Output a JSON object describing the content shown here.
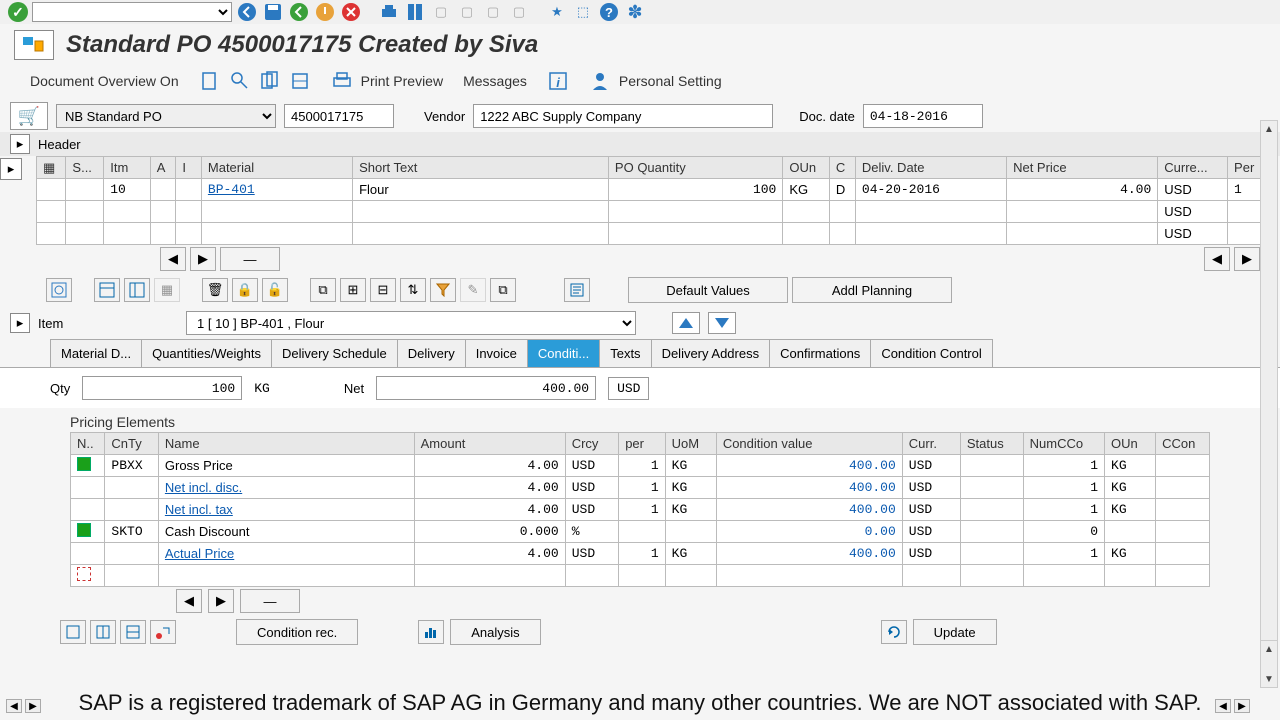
{
  "title": "Standard PO 4500017175 Created by Siva",
  "actions": {
    "doc_overview": "Document Overview On",
    "print_preview": "Print Preview",
    "messages": "Messages",
    "personal_setting": "Personal Setting"
  },
  "header": {
    "doc_type": "NB Standard PO",
    "po_number": "4500017175",
    "vendor_label": "Vendor",
    "vendor_value": "1222 ABC Supply Company",
    "doc_date_label": "Doc. date",
    "doc_date": "04-18-2016",
    "section_label": "Header"
  },
  "items_table": {
    "columns": [
      "S...",
      "Itm",
      "A",
      "I",
      "Material",
      "Short Text",
      "PO Quantity",
      "OUn",
      "C",
      "Deliv. Date",
      "Net Price",
      "Curre...",
      "Per"
    ],
    "rows": [
      {
        "s": "",
        "itm": "10",
        "a": "",
        "i": "",
        "material": "BP-401",
        "short_text": "Flour",
        "qty": "100",
        "oun": "KG",
        "c": "D",
        "deliv": "04-20-2016",
        "net": "4.00",
        "curr": "USD",
        "per": "1"
      },
      {
        "s": "",
        "itm": "",
        "a": "",
        "i": "",
        "material": "",
        "short_text": "",
        "qty": "",
        "oun": "",
        "c": "",
        "deliv": "",
        "net": "",
        "curr": "USD",
        "per": ""
      },
      {
        "s": "",
        "itm": "",
        "a": "",
        "i": "",
        "material": "",
        "short_text": "",
        "qty": "",
        "oun": "",
        "c": "",
        "deliv": "",
        "net": "",
        "curr": "USD",
        "per": ""
      }
    ]
  },
  "icon_bar": {
    "default_values": "Default Values",
    "addl_planning": "Addl Planning"
  },
  "item_section": {
    "label": "Item",
    "selected": "1 [ 10 ] BP-401 , Flour"
  },
  "tabs": [
    "Material D...",
    "Quantities/Weights",
    "Delivery Schedule",
    "Delivery",
    "Invoice",
    "Conditi...",
    "Texts",
    "Delivery Address",
    "Confirmations",
    "Condition Control"
  ],
  "active_tab_index": 5,
  "qty_line": {
    "qty_label": "Qty",
    "qty_value": "100",
    "qty_uom": "KG",
    "net_label": "Net",
    "net_value": "400.00",
    "net_curr": "USD"
  },
  "pricing": {
    "title": "Pricing Elements",
    "columns": [
      "N..",
      "CnTy",
      "Name",
      "Amount",
      "Crcy",
      "per",
      "UoM",
      "Condition value",
      "Curr.",
      "Status",
      "NumCCo",
      "OUn",
      "CCon"
    ],
    "rows": [
      {
        "mark": "g",
        "cnty": "PBXX",
        "name": "Gross Price",
        "amount": "4.00",
        "crcy": "USD",
        "per": "1",
        "uom": "KG",
        "cond_val": "400.00",
        "curr": "USD",
        "status": "",
        "numcco": "1",
        "oun": "KG"
      },
      {
        "mark": "",
        "cnty": "",
        "name": "Net incl. disc.",
        "amount": "4.00",
        "crcy": "USD",
        "per": "1",
        "uom": "KG",
        "cond_val": "400.00",
        "curr": "USD",
        "status": "",
        "numcco": "1",
        "oun": "KG"
      },
      {
        "mark": "",
        "cnty": "",
        "name": "Net incl. tax",
        "amount": "4.00",
        "crcy": "USD",
        "per": "1",
        "uom": "KG",
        "cond_val": "400.00",
        "curr": "USD",
        "status": "",
        "numcco": "1",
        "oun": "KG"
      },
      {
        "mark": "g",
        "cnty": "SKTO",
        "name": "Cash Discount",
        "amount": "0.000",
        "crcy": "%",
        "per": "",
        "uom": "",
        "cond_val": "0.00",
        "curr": "USD",
        "status": "",
        "numcco": "0",
        "oun": ""
      },
      {
        "mark": "",
        "cnty": "",
        "name": "Actual Price",
        "amount": "4.00",
        "crcy": "USD",
        "per": "1",
        "uom": "KG",
        "cond_val": "400.00",
        "curr": "USD",
        "status": "",
        "numcco": "1",
        "oun": "KG"
      },
      {
        "mark": "e",
        "cnty": "",
        "name": "",
        "amount": "",
        "crcy": "",
        "per": "",
        "uom": "",
        "cond_val": "",
        "curr": "",
        "status": "",
        "numcco": "",
        "oun": ""
      }
    ]
  },
  "bottom_actions": {
    "condition_rec": "Condition rec.",
    "analysis": "Analysis",
    "update": "Update"
  },
  "overlay": "SAP is a registered trademark of SAP AG in Germany and many other countries. We are NOT associated with SAP.",
  "colors": {
    "active_tab_bg": "#2b9cd8",
    "link": "#0b5ab0",
    "green": "#1aa01a"
  }
}
